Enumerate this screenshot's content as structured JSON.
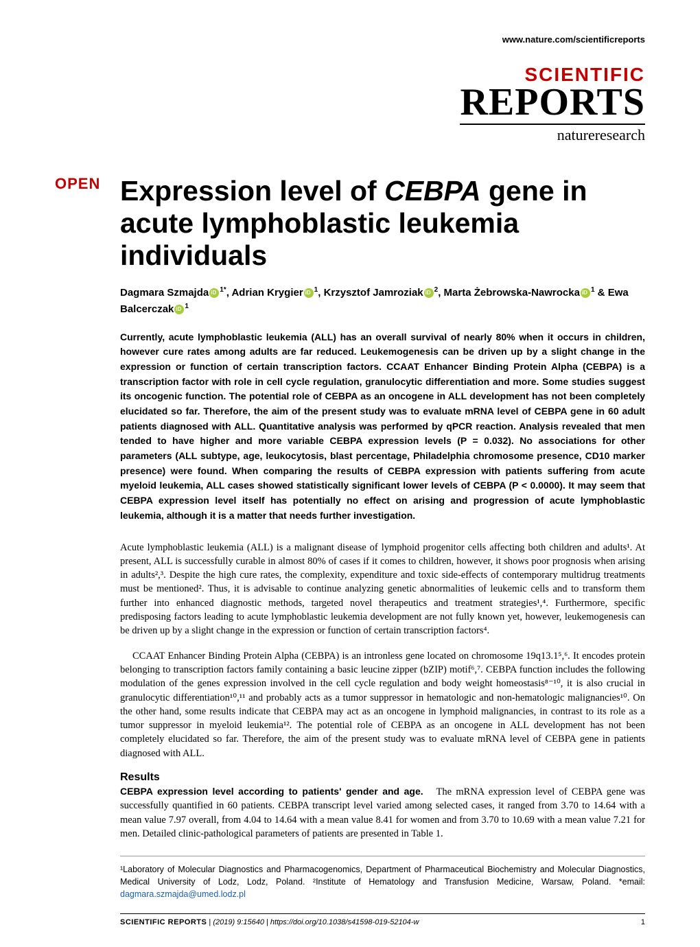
{
  "header": {
    "url": "www.nature.com/scientificreports"
  },
  "logo": {
    "line1": "SCIENTIFIC",
    "line2": "REPORTS",
    "line3": "natureresearch"
  },
  "badge": "OPEN",
  "title_pre": "Expression level of ",
  "title_gene": "CEBPA",
  "title_post": " gene in acute lymphoblastic leukemia individuals",
  "authors": {
    "a1": "Dagmara Szmajda",
    "a1_aff": "1*",
    "a2": "Adrian Krygier",
    "a2_aff": "1",
    "a3": "Krzysztof Jamroziak",
    "a3_aff": "2",
    "a4": "Marta Żebrowska-Nawrocka",
    "a4_aff": "1",
    "a5": "Ewa Balcerczak",
    "a5_aff": "1"
  },
  "abstract": "Currently, acute lymphoblastic leukemia (ALL) has an overall survival of nearly 80% when it occurs in children, however cure rates among adults are far reduced. Leukemogenesis can be driven up by a slight change in the expression or function of certain transcription factors. CCAAT Enhancer Binding Protein Alpha (CEBPA) is a transcription factor with role in cell cycle regulation, granulocytic differentiation and more. Some studies suggest its oncogenic function. The potential role of CEBPA as an oncogene in ALL development has not been completely elucidated so far. Therefore, the aim of the present study was to evaluate mRNA level of CEBPA gene in 60 adult patients diagnosed with ALL. Quantitative analysis was performed by qPCR reaction. Analysis revealed that men tended to have higher and more variable CEBPA expression levels (P = 0.032). No associations for other parameters (ALL subtype, age, leukocytosis, blast percentage, Philadelphia chromosome presence, CD10 marker presence) were found. When comparing the results of CEBPA expression with patients suffering from acute myeloid leukemia, ALL cases showed statistically significant lower levels of CEBPA (P < 0.0000). It may seem that CEBPA expression level itself has potentially no effect on arising and progression of acute lymphoblastic leukemia, although it is a matter that needs further investigation.",
  "para1": "Acute lymphoblastic leukemia (ALL) is a malignant disease of lymphoid progenitor cells affecting both children and adults¹. At present, ALL is successfully curable in almost 80% of cases if it comes to children, however, it shows poor prognosis when arising in adults²,³. Despite the high cure rates, the complexity, expenditure and toxic side-effects of contemporary multidrug treatments must be mentioned². Thus, it is advisable to continue analyzing genetic abnormalities of leukemic cells and to transform them further into enhanced diagnostic methods, targeted novel therapeutics and treatment strategies¹,⁴. Furthermore, specific predisposing factors leading to acute lymphoblastic leukemia development are not fully known yet, however, leukemogenesis can be driven up by a slight change in the expression or function of certain transcription factors⁴.",
  "para2": "CCAAT Enhancer Binding Protein Alpha (CEBPA) is an intronless gene located on chromosome 19q13.1⁵,⁶. It encodes protein belonging to transcription factors family containing a basic leucine zipper (bZIP) motif⁶,⁷. CEBPA function includes the following modulation of the genes expression involved in the cell cycle regulation and body weight homeostasis⁸⁻¹⁰, it is also crucial in granulocytic differentiation¹⁰,¹¹ and probably acts as a tumor suppressor in hematologic and non-hematologic malignancies¹⁰. On the other hand, some results indicate that CEBPA may act as an oncogene in lymphoid malignancies, in contrast to its role as a tumor suppressor in myeloid leukemia¹². The potential role of CEBPA as an oncogene in ALL development has not been completely elucidated so far. Therefore, the aim of the present study was to evaluate mRNA level of CEBPA gene in patients diagnosed with ALL.",
  "results": {
    "head": "Results",
    "sub_pre": "CEBPA",
    "sub_post": " expression level according to patients' gender and age.",
    "text": "The mRNA expression level of CEBPA gene was successfully quantified in 60 patients. CEBPA transcript level varied among selected cases, it ranged from 3.70 to 14.64 with a mean value 7.97 overall, from 4.04 to 14.64 with a mean value 8.41 for women and from 3.70 to 10.69 with a mean value 7.21 for men. Detailed clinic-pathological parameters of patients are presented in Table 1."
  },
  "affil": {
    "text": "¹Laboratory of Molecular Diagnostics and Pharmacogenomics, Department of Pharmaceutical Biochemistry and Molecular Diagnostics, Medical University of Lodz, Lodz, Poland. ²Institute of Hematology and Transfusion Medicine, Warsaw, Poland. *email: ",
    "email": "dagmara.szmajda@umed.lodz.pl"
  },
  "footer": {
    "journal": "SCIENTIFIC REPORTS",
    "sep": " | ",
    "citation": "(2019) 9:15640 | https://doi.org/10.1038/s41598-019-52104-w",
    "page": "1"
  },
  "colors": {
    "brand_red": "#c50000",
    "link_blue": "#1a5fb4",
    "orcid_green": "#a6ce39"
  }
}
